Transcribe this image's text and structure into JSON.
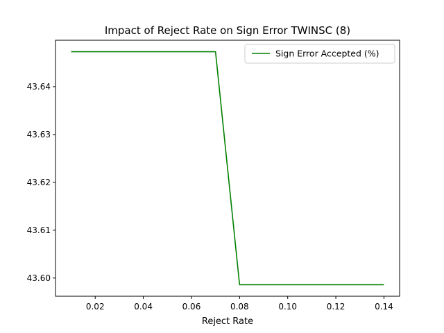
{
  "chart_data": {
    "type": "line",
    "title": "Impact of Reject Rate on Sign Error TWINSC (8)",
    "xlabel": "Reject Rate",
    "ylabel": "",
    "xlim": [
      0.0035,
      0.1465
    ],
    "ylim": [
      43.5962,
      43.6497
    ],
    "xticks": [
      0.02,
      0.04,
      0.06,
      0.08,
      0.1,
      0.12,
      0.14
    ],
    "xtick_labels": [
      "0.02",
      "0.04",
      "0.06",
      "0.08",
      "0.10",
      "0.12",
      "0.14"
    ],
    "yticks": [
      43.6,
      43.61,
      43.62,
      43.63,
      43.64
    ],
    "ytick_labels": [
      "43.60",
      "43.61",
      "43.62",
      "43.63",
      "43.64"
    ],
    "grid": false,
    "legend_position": "top-right",
    "series": [
      {
        "name": "Sign Error Accepted (%)",
        "color": "#008000",
        "x": [
          0.01,
          0.02,
          0.03,
          0.04,
          0.05,
          0.06,
          0.07,
          0.08,
          0.09,
          0.1,
          0.11,
          0.12,
          0.13,
          0.14
        ],
        "y": [
          43.6473,
          43.6473,
          43.6473,
          43.6473,
          43.6473,
          43.6473,
          43.6473,
          43.5986,
          43.5986,
          43.5986,
          43.5986,
          43.5986,
          43.5986,
          43.5986
        ]
      }
    ]
  }
}
